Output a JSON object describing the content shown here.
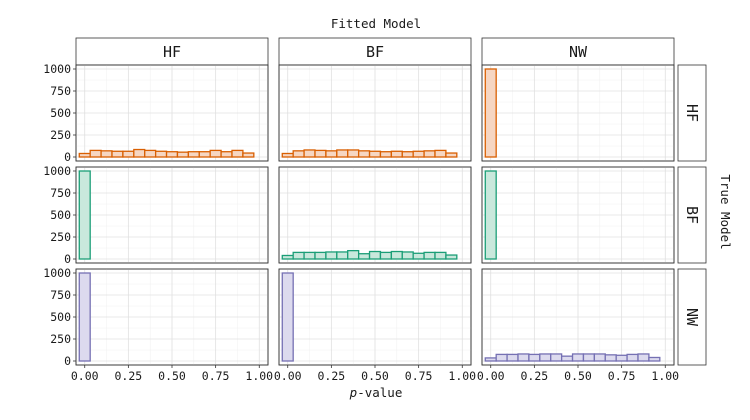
{
  "chart_data": {
    "type": "bar",
    "title": "Fitted Model",
    "xlabel_italic": "p",
    "xlabel_rest": "-value",
    "right_label": "True Model",
    "col_labels": [
      "HF",
      "BF",
      "NW"
    ],
    "row_labels": [
      "HF",
      "BF",
      "NW"
    ],
    "xlim": [
      -0.05,
      1.05
    ],
    "ylim": [
      0,
      1000
    ],
    "x_ticks": [
      0.0,
      0.25,
      0.5,
      0.75,
      1.0
    ],
    "x_tick_labels": [
      "0.00",
      "0.25",
      "0.50",
      "0.75",
      "1.00"
    ],
    "y_ticks": [
      0,
      250,
      500,
      750,
      1000
    ],
    "y_tick_labels": [
      "0",
      "250",
      "500",
      "750",
      "1000"
    ],
    "bin_width": 0.0625,
    "bin_centers": [
      0.0,
      0.0625,
      0.125,
      0.1875,
      0.25,
      0.3125,
      0.375,
      0.4375,
      0.5,
      0.5625,
      0.625,
      0.6875,
      0.75,
      0.8125,
      0.875,
      0.9375,
      1.0
    ],
    "row_colors": [
      {
        "stroke": "#d95f02",
        "fill": "#f6d6c2"
      },
      {
        "stroke": "#1b9e77",
        "fill": "#c9e8dc"
      },
      {
        "stroke": "#7570b3",
        "fill": "#dcdaee"
      }
    ],
    "panels": [
      {
        "row": "HF",
        "col": "HF",
        "values": [
          40,
          75,
          70,
          65,
          65,
          85,
          75,
          65,
          60,
          55,
          60,
          60,
          75,
          60,
          75,
          45,
          0
        ]
      },
      {
        "row": "HF",
        "col": "BF",
        "values": [
          40,
          70,
          80,
          75,
          70,
          80,
          80,
          70,
          65,
          60,
          65,
          60,
          65,
          70,
          75,
          45,
          0
        ]
      },
      {
        "row": "HF",
        "col": "NW",
        "values": [
          1000,
          0,
          0,
          0,
          0,
          0,
          0,
          0,
          0,
          0,
          0,
          0,
          0,
          0,
          0,
          0,
          0
        ]
      },
      {
        "row": "BF",
        "col": "HF",
        "values": [
          1000,
          0,
          0,
          0,
          0,
          0,
          0,
          0,
          0,
          0,
          0,
          0,
          0,
          0,
          0,
          0,
          0
        ]
      },
      {
        "row": "BF",
        "col": "BF",
        "values": [
          40,
          75,
          75,
          75,
          80,
          80,
          95,
          60,
          85,
          75,
          85,
          80,
          65,
          75,
          75,
          45,
          0
        ]
      },
      {
        "row": "BF",
        "col": "NW",
        "values": [
          1000,
          0,
          0,
          0,
          0,
          0,
          0,
          0,
          0,
          0,
          0,
          0,
          0,
          0,
          0,
          0,
          0
        ]
      },
      {
        "row": "NW",
        "col": "HF",
        "values": [
          1000,
          0,
          0,
          0,
          0,
          0,
          0,
          0,
          0,
          0,
          0,
          0,
          0,
          0,
          0,
          0,
          0
        ]
      },
      {
        "row": "NW",
        "col": "BF",
        "values": [
          1000,
          0,
          0,
          0,
          0,
          0,
          0,
          0,
          0,
          0,
          0,
          0,
          0,
          0,
          0,
          0,
          0
        ]
      },
      {
        "row": "NW",
        "col": "NW",
        "values": [
          35,
          75,
          75,
          80,
          75,
          80,
          80,
          55,
          80,
          80,
          80,
          70,
          65,
          75,
          80,
          40,
          0
        ]
      }
    ]
  }
}
